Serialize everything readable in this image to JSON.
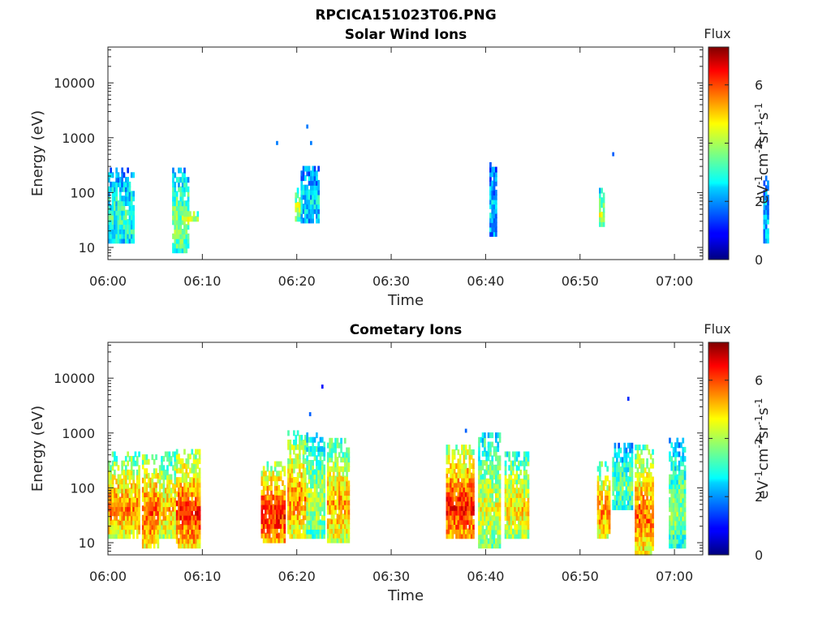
{
  "figure": {
    "title": "RPCICA151023T06.PNG",
    "time_axis_ticks": [
      "06:00",
      "06:10",
      "06:20",
      "06:30",
      "06:40",
      "06:50",
      "07:00"
    ],
    "energy_axis_ticks": [
      "10",
      "100",
      "1000",
      "10000"
    ]
  },
  "panels": [
    {
      "title": "Solar Wind Ions",
      "xlabel": "Time",
      "ylabel": "Energy (eV)",
      "colorbar_title": "Flux",
      "colorbar_label": "eV-1cm-2sr-1s-1",
      "colorbar_ticks": [
        "0",
        "2",
        "4",
        "6"
      ]
    },
    {
      "title": "Cometary Ions",
      "xlabel": "Time",
      "ylabel": "Energy (eV)",
      "colorbar_title": "Flux",
      "colorbar_label": "eV-1cm-2sr-1s-1",
      "colorbar_ticks": [
        "0",
        "2",
        "4",
        "6"
      ]
    }
  ],
  "chart_data": [
    {
      "type": "heatmap",
      "title": "Solar Wind Ions",
      "xlabel": "Time",
      "ylabel": "Energy (eV)",
      "x_range": [
        "06:00",
        "07:03"
      ],
      "y_scale": "log",
      "ylim": [
        6,
        45000
      ],
      "colorbar": {
        "label": "Flux",
        "units": "eV-1cm-2sr-1s-1",
        "range": [
          0,
          7.3
        ],
        "ticks": [
          0,
          2,
          4,
          6
        ],
        "colormap": "jet"
      },
      "clusters": [
        {
          "t0": 0.0,
          "t1": 2.7,
          "e_lo": 12,
          "e_hi": 280,
          "flux": 3.0
        },
        {
          "t0": 6.8,
          "t1": 8.6,
          "e_lo": 8,
          "e_hi": 280,
          "flux": 3.6
        },
        {
          "t0": 8.0,
          "t1": 9.6,
          "e_lo": 30,
          "e_hi": 45,
          "flux": 4.4
        },
        {
          "t0": 19.8,
          "t1": 20.4,
          "e_lo": 30,
          "e_hi": 120,
          "flux": 4.2
        },
        {
          "t0": 20.4,
          "t1": 22.4,
          "e_lo": 28,
          "e_hi": 300,
          "flux": 2.6
        },
        {
          "t0": 40.4,
          "t1": 41.1,
          "e_lo": 16,
          "e_hi": 350,
          "flux": 2.3
        },
        {
          "t0": 52.0,
          "t1": 52.6,
          "e_lo": 24,
          "e_hi": 120,
          "flux": 4.0
        },
        {
          "t0": 69.4,
          "t1": 70.0,
          "e_lo": 12,
          "e_hi": 200,
          "flux": 2.4
        }
      ],
      "points": [
        {
          "t": 17.8,
          "e": 800,
          "flux": 1.8
        },
        {
          "t": 21.0,
          "e": 1600,
          "flux": 1.8
        },
        {
          "t": 21.4,
          "e": 800,
          "flux": 1.8
        },
        {
          "t": 53.4,
          "e": 500,
          "flux": 1.6
        }
      ]
    },
    {
      "type": "heatmap",
      "title": "Cometary Ions",
      "xlabel": "Time",
      "ylabel": "Energy (eV)",
      "x_range": [
        "06:00",
        "07:03"
      ],
      "y_scale": "log",
      "ylim": [
        6,
        45000
      ],
      "colorbar": {
        "label": "Flux",
        "units": "eV-1cm-2sr-1s-1",
        "range": [
          0,
          7.3
        ],
        "ticks": [
          0,
          2,
          4,
          6
        ],
        "colormap": "jet"
      },
      "clusters": [
        {
          "t0": 0.0,
          "t1": 3.4,
          "e_lo": 12,
          "e_hi": 450,
          "flux": 5.2
        },
        {
          "t0": 3.6,
          "t1": 5.4,
          "e_lo": 8,
          "e_hi": 400,
          "flux": 5.6
        },
        {
          "t0": 5.4,
          "t1": 7.2,
          "e_lo": 12,
          "e_hi": 450,
          "flux": 4.8
        },
        {
          "t0": 7.2,
          "t1": 9.8,
          "e_lo": 8,
          "e_hi": 500,
          "flux": 5.8
        },
        {
          "t0": 16.2,
          "t1": 18.8,
          "e_lo": 10,
          "e_hi": 300,
          "flux": 6.0
        },
        {
          "t0": 19.0,
          "t1": 21.0,
          "e_lo": 12,
          "e_hi": 1100,
          "flux": 5.2
        },
        {
          "t0": 21.0,
          "t1": 23.0,
          "e_lo": 12,
          "e_hi": 1000,
          "flux": 4.0
        },
        {
          "t0": 23.2,
          "t1": 25.6,
          "e_lo": 10,
          "e_hi": 800,
          "flux": 5.0
        },
        {
          "t0": 35.8,
          "t1": 38.8,
          "e_lo": 12,
          "e_hi": 600,
          "flux": 6.0
        },
        {
          "t0": 39.2,
          "t1": 41.6,
          "e_lo": 8,
          "e_hi": 1000,
          "flux": 4.2
        },
        {
          "t0": 42.0,
          "t1": 44.6,
          "e_lo": 12,
          "e_hi": 450,
          "flux": 4.6
        },
        {
          "t0": 51.8,
          "t1": 53.2,
          "e_lo": 12,
          "e_hi": 300,
          "flux": 5.2
        },
        {
          "t0": 53.4,
          "t1": 55.6,
          "e_lo": 40,
          "e_hi": 650,
          "flux": 3.4
        },
        {
          "t0": 55.8,
          "t1": 57.8,
          "e_lo": 6,
          "e_hi": 600,
          "flux": 5.4
        },
        {
          "t0": 59.4,
          "t1": 61.2,
          "e_lo": 8,
          "e_hi": 800,
          "flux": 3.6
        }
      ],
      "points": [
        {
          "t": 22.6,
          "e": 7000,
          "flux": 1.0
        },
        {
          "t": 55.0,
          "e": 4200,
          "flux": 1.2
        },
        {
          "t": 21.3,
          "e": 2200,
          "flux": 1.6
        },
        {
          "t": 37.8,
          "e": 1100,
          "flux": 1.6
        }
      ]
    }
  ]
}
